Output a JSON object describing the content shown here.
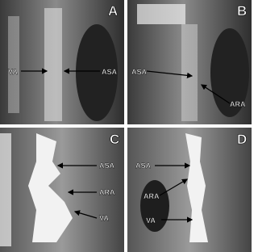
{
  "panels": [
    {
      "letter": "A",
      "labels": [
        "VA",
        "ASA"
      ]
    },
    {
      "letter": "B",
      "labels": [
        "ASA",
        "ARA"
      ]
    },
    {
      "letter": "C",
      "labels": [
        "ASA",
        "ARA",
        "VA"
      ]
    },
    {
      "letter": "D",
      "labels": [
        "ASA",
        "ARA",
        "VA"
      ]
    }
  ]
}
